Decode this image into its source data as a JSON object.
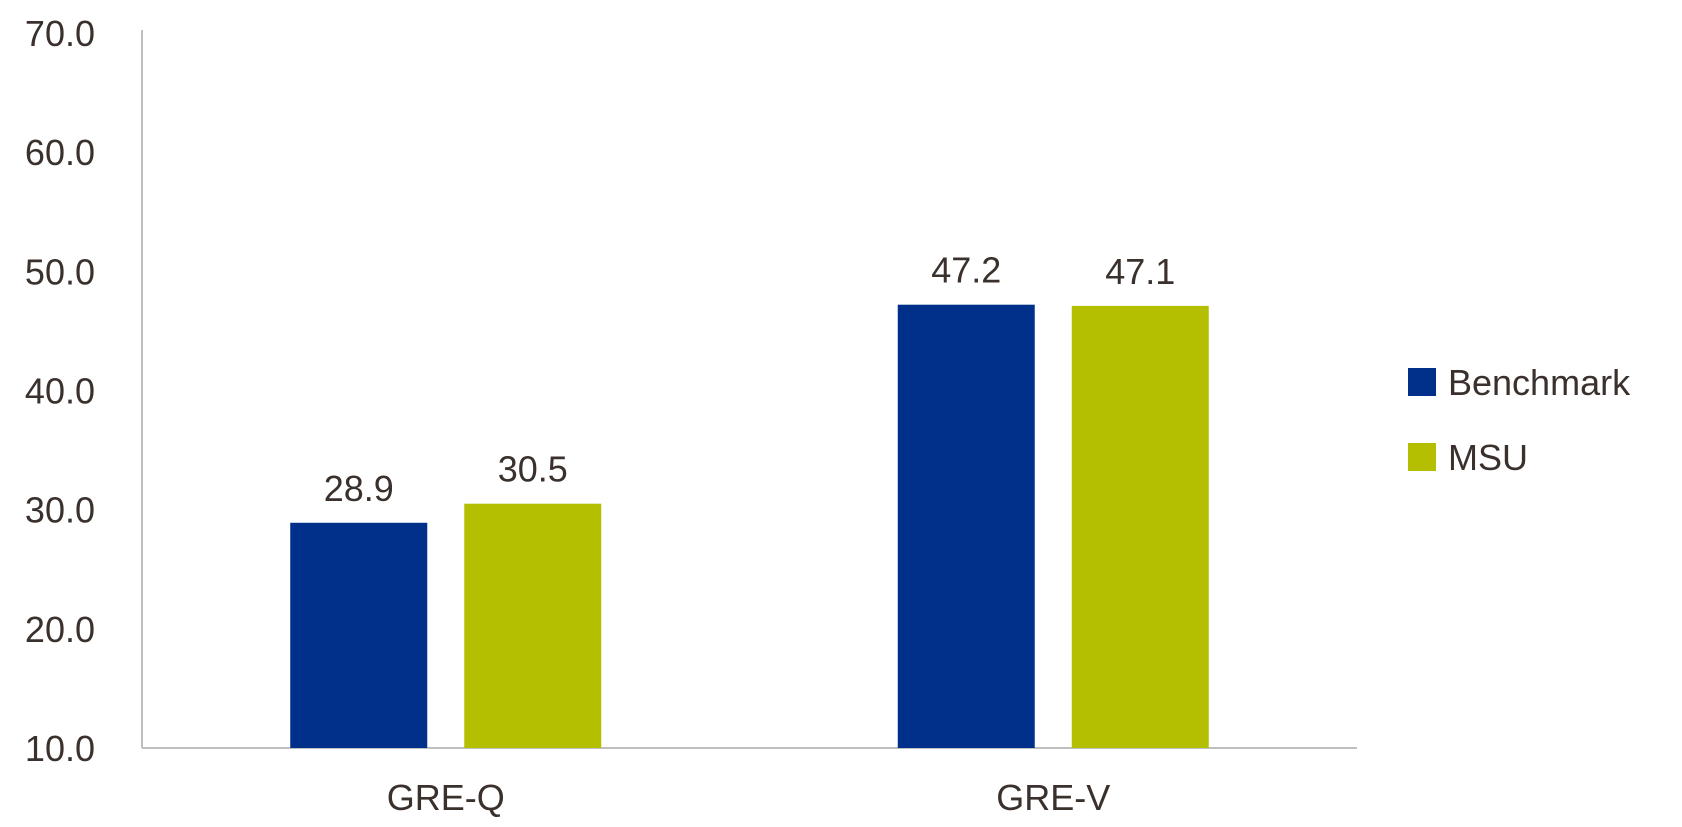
{
  "chart_data": {
    "type": "bar",
    "title": "",
    "xlabel": "",
    "ylabel": "",
    "categories": [
      "GRE-Q",
      "GRE-V"
    ],
    "series": [
      {
        "name": "Benchmark",
        "values": [
          28.9,
          47.2
        ],
        "color": "#00308a"
      },
      {
        "name": "MSU",
        "values": [
          30.5,
          47.1
        ],
        "color": "#b3bf00"
      }
    ],
    "ylim": [
      10,
      70
    ],
    "yticks": [
      "10.0",
      "20.0",
      "30.0",
      "40.0",
      "50.0",
      "60.0",
      "70.0"
    ],
    "data_labels": [
      [
        "28.9",
        "47.2"
      ],
      [
        "30.5",
        "47.1"
      ]
    ],
    "grid": false,
    "legend_position": "right"
  }
}
